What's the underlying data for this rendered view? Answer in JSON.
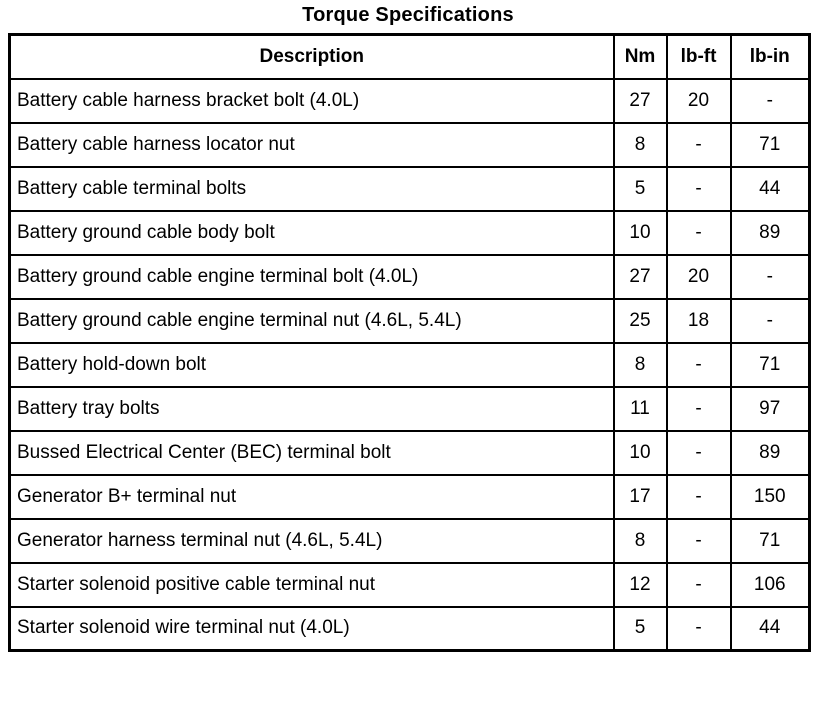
{
  "page": {
    "title": "Torque Specifications"
  },
  "table": {
    "headers": [
      "Description",
      "Nm",
      "lb-ft",
      "lb-in"
    ],
    "rows": [
      [
        "Battery cable harness bracket bolt (4.0L)",
        "27",
        "20",
        "-"
      ],
      [
        "Battery cable harness locator nut",
        "8",
        "-",
        "71"
      ],
      [
        "Battery cable terminal bolts",
        "5",
        "-",
        "44"
      ],
      [
        "Battery ground cable body bolt",
        "10",
        "-",
        "89"
      ],
      [
        "Battery ground cable engine terminal bolt (4.0L)",
        "27",
        "20",
        "-"
      ],
      [
        "Battery ground cable engine terminal nut (4.6L, 5.4L)",
        "25",
        "18",
        "-"
      ],
      [
        "Battery hold-down bolt",
        "8",
        "-",
        "71"
      ],
      [
        "Battery tray bolts",
        "11",
        "-",
        "97"
      ],
      [
        "Bussed Electrical Center (BEC) terminal bolt",
        "10",
        "-",
        "89"
      ],
      [
        "Generator B+ terminal nut",
        "17",
        "-",
        "150"
      ],
      [
        "Generator harness terminal nut (4.6L, 5.4L)",
        "8",
        "-",
        "71"
      ],
      [
        "Starter solenoid positive cable terminal nut",
        "12",
        "-",
        "106"
      ],
      [
        "Starter solenoid wire terminal nut (4.0L)",
        "5",
        "-",
        "44"
      ]
    ]
  }
}
